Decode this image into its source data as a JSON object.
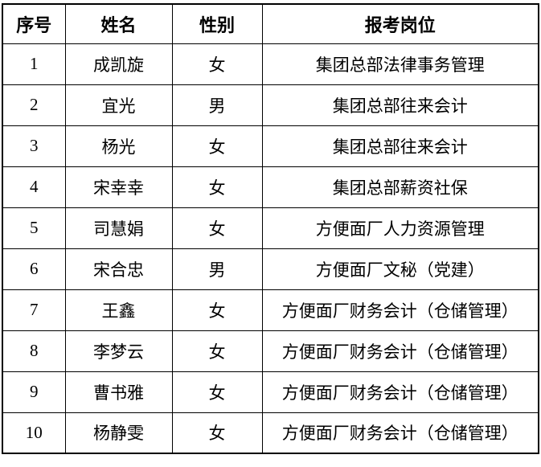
{
  "colors": {
    "background": "#ffffff",
    "border": "#000000",
    "text": "#000000"
  },
  "table": {
    "headers": {
      "no": "序号",
      "name": "姓名",
      "gender": "性别",
      "position": "报考岗位"
    },
    "rows": [
      {
        "no": "1",
        "name": "成凯旋",
        "gender": "女",
        "position": "集团总部法律事务管理"
      },
      {
        "no": "2",
        "name": "宜光",
        "gender": "男",
        "position": "集团总部往来会计"
      },
      {
        "no": "3",
        "name": "杨光",
        "gender": "女",
        "position": "集团总部往来会计"
      },
      {
        "no": "4",
        "name": "宋幸幸",
        "gender": "女",
        "position": "集团总部薪资社保"
      },
      {
        "no": "5",
        "name": "司慧娟",
        "gender": "女",
        "position": "方便面厂人力资源管理"
      },
      {
        "no": "6",
        "name": "宋合忠",
        "gender": "男",
        "position": "方便面厂文秘（党建）"
      },
      {
        "no": "7",
        "name": "王鑫",
        "gender": "女",
        "position": "方便面厂财务会计（仓储管理）"
      },
      {
        "no": "8",
        "name": "李梦云",
        "gender": "女",
        "position": "方便面厂财务会计（仓储管理）"
      },
      {
        "no": "9",
        "name": "曹书雅",
        "gender": "女",
        "position": "方便面厂财务会计（仓储管理）"
      },
      {
        "no": "10",
        "name": "杨静雯",
        "gender": "女",
        "position": "方便面厂财务会计（仓储管理）"
      }
    ]
  }
}
